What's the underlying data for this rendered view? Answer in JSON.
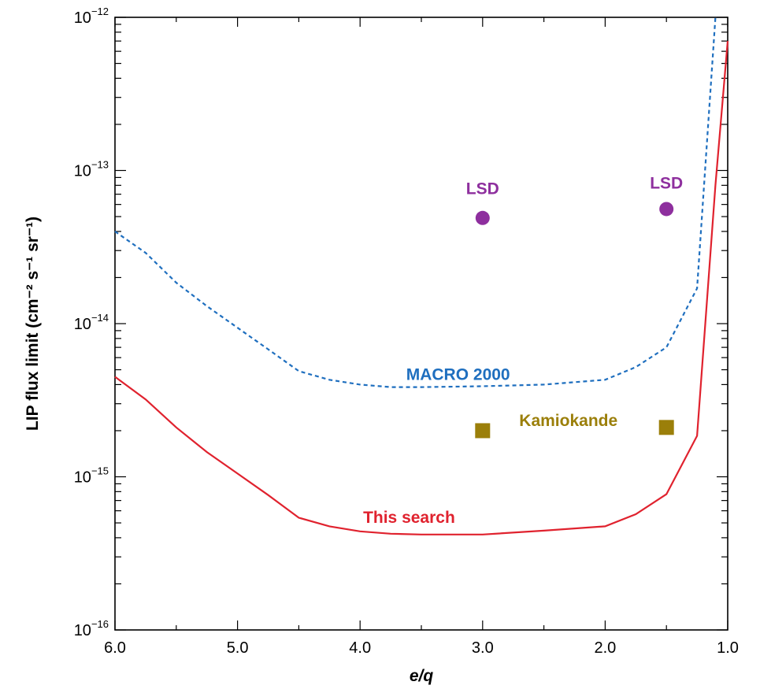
{
  "chart_data": {
    "type": "line",
    "title": "",
    "xlabel": "e/q",
    "ylabel": "LIP flux limit (cm⁻² s⁻¹ sr⁻¹)",
    "x_reversed": true,
    "xlim": [
      6.0,
      1.0
    ],
    "ylim": [
      1e-16,
      1e-12
    ],
    "yscale": "log",
    "grid": false,
    "x_ticks": [
      6.0,
      5.0,
      4.0,
      3.0,
      2.0,
      1.0
    ],
    "x_tick_labels": [
      "6.0",
      "5.0",
      "4.0",
      "3.0",
      "2.0",
      "1.0"
    ],
    "y_ticks": [
      {
        "value": 1e-16,
        "base": "10",
        "exp": "−16"
      },
      {
        "value": 1e-15,
        "base": "10",
        "exp": "−15"
      },
      {
        "value": 1e-14,
        "base": "10",
        "exp": "−14"
      },
      {
        "value": 1e-13,
        "base": "10",
        "exp": "−13"
      },
      {
        "value": 1e-12,
        "base": "10",
        "exp": "−12"
      }
    ],
    "series": [
      {
        "name": "MACRO 2000",
        "color": "#1f6fbf",
        "dash": "5,4",
        "points": [
          [
            6.0,
            4e-14
          ],
          [
            5.75,
            2.9e-14
          ],
          [
            5.5,
            1.85e-14
          ],
          [
            5.25,
            1.3e-14
          ],
          [
            5.0,
            9.4e-15
          ],
          [
            4.75,
            6.8e-15
          ],
          [
            4.5,
            4.9e-15
          ],
          [
            4.25,
            4.3e-15
          ],
          [
            4.0,
            4e-15
          ],
          [
            3.75,
            3.85e-15
          ],
          [
            3.5,
            3.85e-15
          ],
          [
            3.0,
            3.9e-15
          ],
          [
            2.5,
            4e-15
          ],
          [
            2.0,
            4.3e-15
          ],
          [
            1.75,
            5.2e-15
          ],
          [
            1.5,
            7e-15
          ],
          [
            1.25,
            1.7e-14
          ],
          [
            1.1,
            1e-12
          ]
        ],
        "label_position": {
          "x": 3.2,
          "y": 4.3e-15
        }
      },
      {
        "name": "This search",
        "color": "#e0222e",
        "dash": "",
        "points": [
          [
            6.0,
            4.5e-15
          ],
          [
            5.75,
            3.2e-15
          ],
          [
            5.5,
            2.1e-15
          ],
          [
            5.25,
            1.45e-15
          ],
          [
            5.0,
            1.05e-15
          ],
          [
            4.75,
            7.6e-16
          ],
          [
            4.5,
            5.4e-16
          ],
          [
            4.25,
            4.75e-16
          ],
          [
            4.0,
            4.4e-16
          ],
          [
            3.75,
            4.25e-16
          ],
          [
            3.5,
            4.2e-16
          ],
          [
            3.0,
            4.2e-16
          ],
          [
            2.5,
            4.45e-16
          ],
          [
            2.0,
            4.75e-16
          ],
          [
            1.75,
            5.7e-16
          ],
          [
            1.5,
            7.7e-16
          ],
          [
            1.25,
            1.85e-15
          ],
          [
            1.1,
            8e-14
          ],
          [
            1.0,
            7e-13
          ]
        ],
        "label_position": {
          "x": 3.6,
          "y": 5e-16
        }
      }
    ],
    "points": [
      {
        "label": "LSD",
        "x": 3.0,
        "y": 4.9e-14,
        "marker": "circle",
        "color": "#8e2f9e"
      },
      {
        "label": "LSD",
        "x": 1.5,
        "y": 5.6e-14,
        "marker": "circle",
        "color": "#8e2f9e"
      },
      {
        "label": "Kamiokande",
        "x": 3.0,
        "y": 2e-15,
        "marker": "square",
        "color": "#9b7f0a"
      },
      {
        "label": "Kamiokande",
        "x": 1.5,
        "y": 2.1e-15,
        "marker": "square",
        "color": "#9b7f0a"
      }
    ],
    "annotations": [
      {
        "text": "LSD",
        "x": 3.0,
        "y": 7e-14,
        "color": "#8e2f9e"
      },
      {
        "text": "LSD",
        "x": 1.5,
        "y": 7.6e-14,
        "color": "#8e2f9e"
      },
      {
        "text": "Kamiokande",
        "x": 2.3,
        "y": 2.15e-15,
        "color": "#9b7f0a"
      }
    ]
  }
}
